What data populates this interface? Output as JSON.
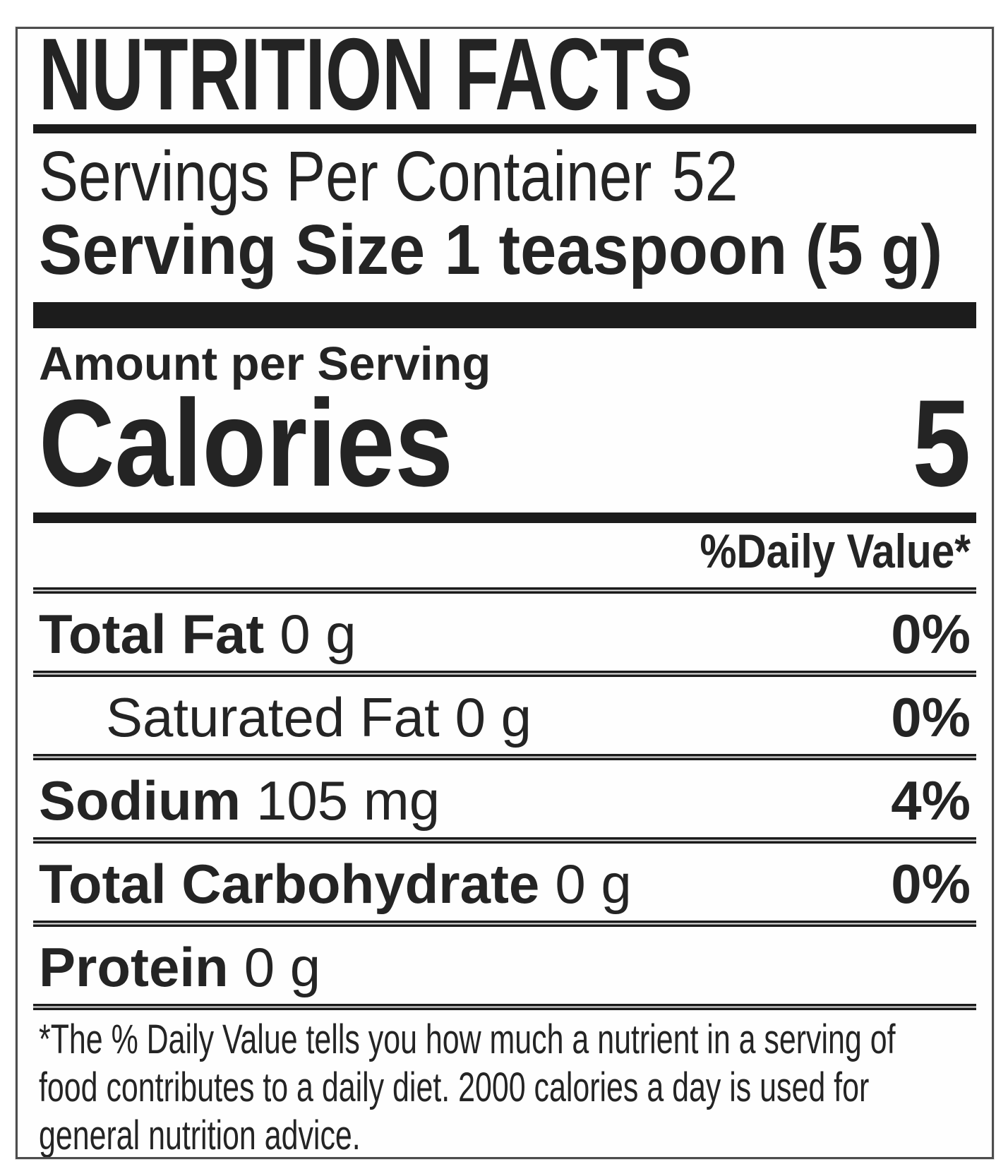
{
  "label": {
    "title": "NUTRITION FACTS",
    "servings_per_container": {
      "label": "Servings Per Container",
      "value": "52"
    },
    "serving_size": {
      "label": "Serving Size",
      "value": "1 teaspoon (5 g)"
    },
    "amount_per_serving": "Amount per Serving",
    "calories": {
      "label": "Calories",
      "value": "5"
    },
    "daily_value_header": "%Daily Value*",
    "nutrients": [
      {
        "name": "Total Fat",
        "amount": "0 g",
        "daily_value": "0%"
      },
      {
        "name": "Saturated Fat",
        "amount": "0 g",
        "daily_value": "0%"
      },
      {
        "name": "Sodium",
        "amount": "105 mg",
        "daily_value": "4%"
      },
      {
        "name": "Total Carbohydrate",
        "amount": "0 g",
        "daily_value": "0%"
      },
      {
        "name": "Protein",
        "amount": "0 g",
        "daily_value": ""
      }
    ],
    "footnote_lines": [
      "*The % Daily Value tells you how much a nutrient in a serving of",
      "food contributes to a daily diet. 2000 calories a day is used for",
      "general nutrition advice."
    ],
    "colors": {
      "text": "#242424",
      "rule": "#1c1c1c",
      "background": "#fefefe",
      "border": "#4d4d4d"
    }
  }
}
